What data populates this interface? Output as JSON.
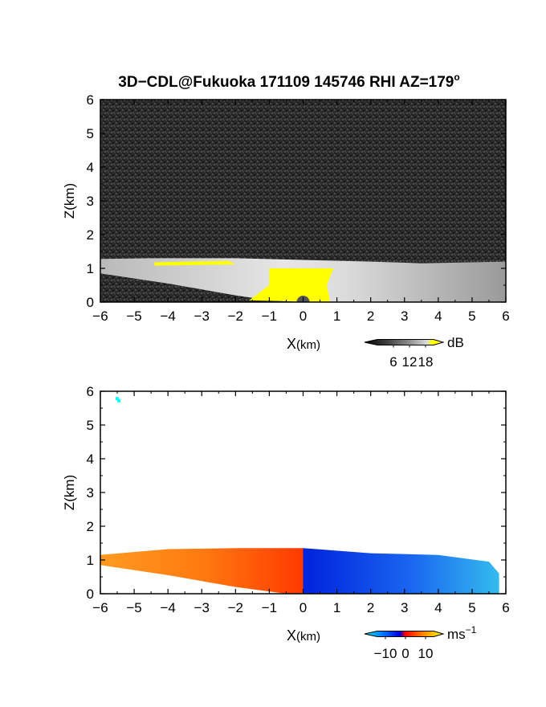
{
  "title": {
    "main": "3D−CDL@Fukuoka 171109 145746 RHI AZ=179",
    "degree": "o"
  },
  "chart_data": [
    {
      "type": "heatmap",
      "panel": "backscatter",
      "xlabel_main": "X",
      "xlabel_unit": "(km)",
      "ylabel": "Z(km)",
      "xlim": [
        -6,
        6
      ],
      "ylim": [
        0,
        6
      ],
      "xticks": [
        "−6",
        "−5",
        "−4",
        "−3",
        "−2",
        "−1",
        "0",
        "1",
        "2",
        "3",
        "4",
        "5",
        "6"
      ],
      "yticks": [
        "0",
        "1",
        "2",
        "3",
        "4",
        "5",
        "6"
      ],
      "background": "noise",
      "colorbar": {
        "label": "dB",
        "ticks": [
          "6",
          "12",
          "18"
        ],
        "tick_values": [
          6,
          12,
          18
        ],
        "range": [
          0,
          21
        ],
        "colors": [
          "#000000",
          "#444444",
          "#888888",
          "#bbbbbb",
          "#eeeeee",
          "#ffff00"
        ]
      },
      "regions": [
        {
          "name": "signal",
          "color": "#c8c8c8",
          "top": [
            [
              -6,
              1.28
            ],
            [
              -4.5,
              1.3
            ],
            [
              -2,
              1.3
            ],
            [
              0,
              1.25
            ],
            [
              2,
              1.2
            ],
            [
              3.5,
              1.15
            ],
            [
              6,
              1.2
            ]
          ],
          "bottom": [
            [
              -6,
              0.85
            ],
            [
              -4,
              0.55
            ],
            [
              -2,
              0.2
            ],
            [
              -1,
              0.05
            ],
            [
              0,
              0.0
            ],
            [
              6,
              0.0
            ]
          ]
        },
        {
          "name": "saturated",
          "color": "#ffff00",
          "threshold_db": 18,
          "areas": [
            [
              [
                -4.4,
                1.18
              ],
              [
                -2.2,
                1.22
              ],
              [
                -2.0,
                1.12
              ],
              [
                -4.4,
                1.08
              ]
            ],
            [
              [
                -1.0,
                1.0
              ],
              [
                0.9,
                1.0
              ],
              [
                0.7,
                0.5
              ],
              [
                0.8,
                0.0
              ],
              [
                -1.6,
                0.05
              ],
              [
                -1.0,
                0.5
              ]
            ]
          ]
        }
      ]
    },
    {
      "type": "heatmap",
      "panel": "radial_velocity",
      "xlabel_main": "X",
      "xlabel_unit": "(km)",
      "ylabel": "Z(km)",
      "xlim": [
        -6,
        6
      ],
      "ylim": [
        0,
        6
      ],
      "xticks": [
        "−6",
        "−5",
        "−4",
        "−3",
        "−2",
        "−1",
        "0",
        "1",
        "2",
        "3",
        "4",
        "5",
        "6"
      ],
      "yticks": [
        "0",
        "1",
        "2",
        "3",
        "4",
        "5",
        "6"
      ],
      "colorbar": {
        "label": "ms",
        "label_exp": "−1",
        "ticks": [
          "−10",
          "0",
          "10"
        ],
        "tick_values": [
          -10,
          0,
          10
        ],
        "range": [
          -14,
          14
        ],
        "colors": [
          "#00eeee",
          "#0088ff",
          "#0000dd",
          "#ff0000",
          "#ff8800",
          "#ffff00"
        ]
      },
      "regions": [
        {
          "name": "toward",
          "color": "#ff6600",
          "top": [
            [
              -6,
              1.15
            ],
            [
              -4,
              1.32
            ],
            [
              -2,
              1.35
            ],
            [
              0,
              1.35
            ]
          ],
          "bottom": [
            [
              -6,
              0.85
            ],
            [
              -4,
              0.55
            ],
            [
              -2,
              0.2
            ],
            [
              -0.5,
              0.0
            ],
            [
              0,
              0.0
            ]
          ]
        },
        {
          "name": "away",
          "color": "#1155ee",
          "top": [
            [
              0,
              1.35
            ],
            [
              2,
              1.2
            ],
            [
              4,
              1.15
            ],
            [
              5.5,
              0.95
            ],
            [
              5.8,
              0.6
            ]
          ],
          "bottom": [
            [
              0,
              0.0
            ],
            [
              5.8,
              0.0
            ]
          ]
        },
        {
          "name": "isolated",
          "color": "#00ffff",
          "points": [
            [
              -5.5,
              5.78
            ],
            [
              -5.45,
              5.72
            ]
          ]
        }
      ]
    }
  ]
}
